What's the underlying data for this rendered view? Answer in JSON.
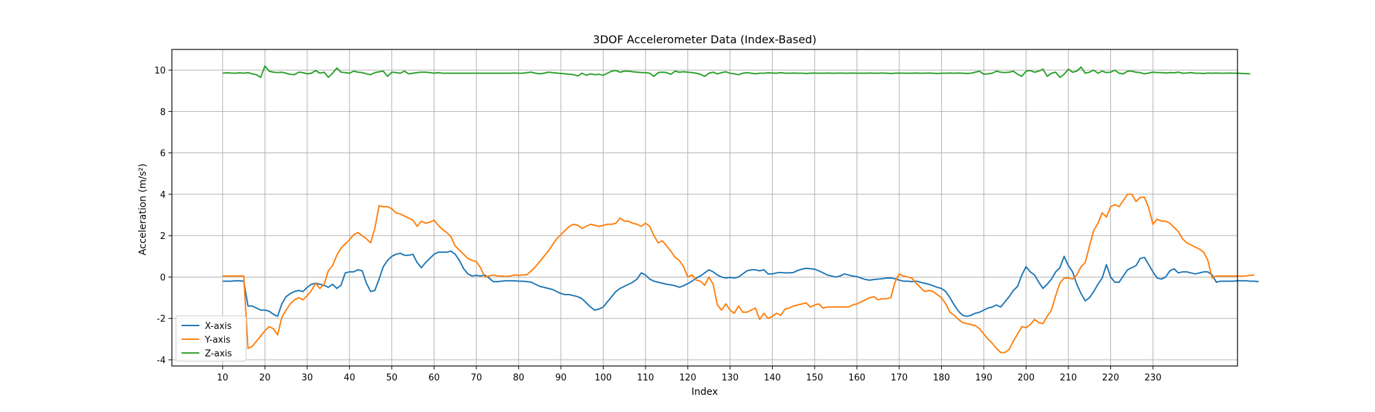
{
  "chart_data": {
    "type": "line",
    "title": "3DOF Accelerometer Data (Index-Based)",
    "xlabel": "Index",
    "ylabel": "Acceleration (m/s²)",
    "xlim": [
      -2,
      250
    ],
    "ylim": [
      -4.3,
      11.0
    ],
    "xticks": [
      10,
      20,
      30,
      40,
      50,
      60,
      70,
      80,
      90,
      100,
      110,
      120,
      130,
      140,
      150,
      160,
      170,
      180,
      190,
      200,
      210,
      220,
      230
    ],
    "yticks": [
      -4,
      -2,
      0,
      2,
      4,
      6,
      8,
      10
    ],
    "grid": true,
    "legend_position": "lower-left",
    "x_start": 10,
    "x_step": 1,
    "series": [
      {
        "name": "X-axis",
        "color": "#1f77b4",
        "values": [
          -0.2,
          -0.2,
          -0.2,
          -0.18,
          -0.18,
          -0.2,
          -1.4,
          -1.4,
          -1.5,
          -1.6,
          -1.6,
          -1.65,
          -1.8,
          -1.9,
          -1.3,
          -0.95,
          -0.8,
          -0.7,
          -0.65,
          -0.7,
          -0.5,
          -0.35,
          -0.3,
          -0.35,
          -0.4,
          -0.5,
          -0.35,
          -0.55,
          -0.4,
          0.2,
          0.25,
          0.25,
          0.35,
          0.3,
          -0.3,
          -0.7,
          -0.65,
          -0.1,
          0.5,
          0.8,
          1.0,
          1.1,
          1.15,
          1.05,
          1.05,
          1.1,
          0.7,
          0.45,
          0.7,
          0.9,
          1.1,
          1.2,
          1.2,
          1.2,
          1.25,
          1.1,
          0.8,
          0.4,
          0.15,
          0.05,
          0.08,
          0.05,
          0.1,
          -0.05,
          -0.22,
          -0.22,
          -0.2,
          -0.18,
          -0.18,
          -0.18,
          -0.2,
          -0.2,
          -0.22,
          -0.25,
          -0.35,
          -0.45,
          -0.5,
          -0.55,
          -0.6,
          -0.7,
          -0.8,
          -0.85,
          -0.85,
          -0.9,
          -0.95,
          -1.05,
          -1.25,
          -1.45,
          -1.6,
          -1.55,
          -1.45,
          -1.2,
          -0.95,
          -0.7,
          -0.55,
          -0.45,
          -0.35,
          -0.25,
          -0.1,
          0.2,
          0.1,
          -0.1,
          -0.2,
          -0.25,
          -0.3,
          -0.35,
          -0.38,
          -0.42,
          -0.5,
          -0.42,
          -0.32,
          -0.2,
          -0.05,
          0.05,
          0.2,
          0.35,
          0.25,
          0.1,
          0.0,
          -0.05,
          -0.02,
          -0.05,
          0.0,
          0.15,
          0.3,
          0.35,
          0.35,
          0.3,
          0.35,
          0.15,
          0.15,
          0.2,
          0.22,
          0.2,
          0.2,
          0.22,
          0.32,
          0.38,
          0.42,
          0.4,
          0.38,
          0.3,
          0.2,
          0.1,
          0.05,
          0.0,
          0.05,
          0.15,
          0.1,
          0.05,
          0.02,
          -0.05,
          -0.12,
          -0.15,
          -0.12,
          -0.1,
          -0.08,
          -0.05,
          -0.05,
          -0.08,
          -0.15,
          -0.2,
          -0.2,
          -0.22,
          -0.2,
          -0.25,
          -0.3,
          -0.35,
          -0.42,
          -0.5,
          -0.55,
          -0.7,
          -1.0,
          -1.35,
          -1.65,
          -1.85,
          -1.9,
          -1.85,
          -1.75,
          -1.7,
          -1.6,
          -1.5,
          -1.45,
          -1.35,
          -1.45,
          -1.2,
          -0.95,
          -0.65,
          -0.45,
          0.1,
          0.5,
          0.25,
          0.1,
          -0.25,
          -0.55,
          -0.35,
          -0.1,
          0.25,
          0.45,
          1.0,
          0.55,
          0.25,
          -0.35,
          -0.8,
          -1.15,
          -1.0,
          -0.7,
          -0.35,
          -0.05,
          0.6,
          0.0,
          -0.25,
          -0.25,
          0.05,
          0.35,
          0.45,
          0.55,
          0.9,
          0.95,
          0.6,
          0.25,
          -0.05,
          -0.1,
          0.0,
          0.3,
          0.4,
          0.2,
          0.25,
          0.25,
          0.2,
          0.15,
          0.2,
          0.25,
          0.25,
          0.1,
          -0.25,
          -0.2,
          -0.2,
          -0.2,
          -0.2,
          -0.18,
          -0.18,
          -0.18,
          -0.2,
          -0.2,
          -0.22
        ]
      },
      {
        "name": "Y-axis",
        "color": "#ff7f0e",
        "values": [
          0.05,
          0.05,
          0.05,
          0.05,
          0.05,
          0.05,
          -3.45,
          -3.35,
          -3.1,
          -2.85,
          -2.6,
          -2.4,
          -2.5,
          -2.8,
          -1.95,
          -1.6,
          -1.3,
          -1.1,
          -1.0,
          -1.1,
          -0.9,
          -0.65,
          -0.3,
          -0.55,
          -0.35,
          0.3,
          0.55,
          1.05,
          1.4,
          1.6,
          1.8,
          2.05,
          2.15,
          2.0,
          1.85,
          1.65,
          2.35,
          3.45,
          3.4,
          3.4,
          3.3,
          3.1,
          3.05,
          2.95,
          2.85,
          2.75,
          2.45,
          2.7,
          2.6,
          2.65,
          2.75,
          2.5,
          2.3,
          2.15,
          1.95,
          1.5,
          1.3,
          1.1,
          0.9,
          0.8,
          0.75,
          0.45,
          0.0,
          0.05,
          0.1,
          0.05,
          0.05,
          0.02,
          0.05,
          0.1,
          0.08,
          0.1,
          0.12,
          0.3,
          0.5,
          0.75,
          1.0,
          1.25,
          1.55,
          1.85,
          2.05,
          2.25,
          2.45,
          2.55,
          2.5,
          2.35,
          2.45,
          2.55,
          2.5,
          2.45,
          2.5,
          2.55,
          2.55,
          2.6,
          2.85,
          2.7,
          2.7,
          2.6,
          2.55,
          2.45,
          2.6,
          2.45,
          2.0,
          1.65,
          1.75,
          1.5,
          1.25,
          0.95,
          0.8,
          0.5,
          0.0,
          0.1,
          -0.15,
          -0.2,
          -0.4,
          0.0,
          -0.35,
          -1.35,
          -1.6,
          -1.3,
          -1.6,
          -1.75,
          -1.4,
          -1.7,
          -1.7,
          -1.6,
          -1.5,
          -2.05,
          -1.75,
          -2.0,
          -1.9,
          -1.75,
          -1.85,
          -1.55,
          -1.5,
          -1.4,
          -1.35,
          -1.3,
          -1.25,
          -1.45,
          -1.35,
          -1.3,
          -1.5,
          -1.45,
          -1.45,
          -1.45,
          -1.45,
          -1.45,
          -1.45,
          -1.35,
          -1.3,
          -1.2,
          -1.1,
          -1.0,
          -0.95,
          -1.1,
          -1.05,
          -1.05,
          -1.0,
          -0.25,
          0.15,
          0.05,
          0.0,
          -0.05,
          -0.3,
          -0.5,
          -0.7,
          -0.65,
          -0.7,
          -0.85,
          -1.0,
          -1.3,
          -1.7,
          -1.85,
          -2.05,
          -2.2,
          -2.25,
          -2.3,
          -2.35,
          -2.5,
          -2.75,
          -3.0,
          -3.2,
          -3.45,
          -3.65,
          -3.65,
          -3.5,
          -3.1,
          -2.75,
          -2.4,
          -2.45,
          -2.3,
          -2.05,
          -2.2,
          -2.25,
          -1.9,
          -1.6,
          -0.9,
          -0.3,
          -0.05,
          -0.05,
          -0.1,
          0.1,
          0.5,
          0.7,
          1.5,
          2.25,
          2.6,
          3.1,
          2.9,
          3.4,
          3.5,
          3.4,
          3.7,
          4.0,
          4.0,
          3.65,
          3.85,
          3.85,
          3.35,
          2.55,
          2.8,
          2.7,
          2.7,
          2.6,
          2.4,
          2.2,
          1.85,
          1.65,
          1.55,
          1.45,
          1.35,
          1.2,
          0.8,
          -0.05,
          0.05,
          0.05,
          0.05,
          0.05,
          0.05,
          0.05,
          0.03,
          0.05,
          0.08,
          0.1
        ]
      },
      {
        "name": "Z-axis",
        "color": "#2ca02c",
        "values": [
          9.85,
          9.87,
          9.86,
          9.85,
          9.87,
          9.85,
          9.88,
          9.82,
          9.78,
          9.65,
          10.2,
          9.95,
          9.9,
          9.88,
          9.9,
          9.85,
          9.8,
          9.78,
          9.9,
          9.88,
          9.82,
          9.85,
          9.98,
          9.85,
          9.9,
          9.65,
          9.85,
          10.1,
          9.9,
          9.88,
          9.85,
          9.95,
          9.9,
          9.88,
          9.82,
          9.78,
          9.88,
          9.92,
          9.95,
          9.7,
          9.9,
          9.88,
          9.85,
          9.95,
          9.82,
          9.85,
          9.88,
          9.9,
          9.9,
          9.88,
          9.85,
          9.88,
          9.85,
          9.85,
          9.85,
          9.85,
          9.85,
          9.85,
          9.85,
          9.85,
          9.85,
          9.85,
          9.85,
          9.85,
          9.85,
          9.85,
          9.85,
          9.85,
          9.85,
          9.86,
          9.85,
          9.85,
          9.88,
          9.9,
          9.85,
          9.82,
          9.85,
          9.9,
          9.88,
          9.86,
          9.84,
          9.82,
          9.8,
          9.78,
          9.72,
          9.85,
          9.75,
          9.82,
          9.78,
          9.8,
          9.75,
          9.85,
          9.95,
          9.98,
          9.9,
          9.95,
          9.95,
          9.92,
          9.9,
          9.88,
          9.88,
          9.85,
          9.7,
          9.88,
          9.9,
          9.88,
          9.8,
          9.95,
          9.9,
          9.92,
          9.9,
          9.88,
          9.85,
          9.8,
          9.7,
          9.85,
          9.9,
          9.82,
          9.88,
          9.92,
          9.85,
          9.82,
          9.78,
          9.85,
          9.88,
          9.85,
          9.82,
          9.85,
          9.85,
          9.87,
          9.86,
          9.85,
          9.88,
          9.85,
          9.85,
          9.86,
          9.85,
          9.85,
          9.84,
          9.85,
          9.86,
          9.85,
          9.85,
          9.86,
          9.85,
          9.85,
          9.86,
          9.85,
          9.85,
          9.86,
          9.85,
          9.85,
          9.85,
          9.86,
          9.85,
          9.85,
          9.86,
          9.85,
          9.84,
          9.85,
          9.86,
          9.85,
          9.85,
          9.85,
          9.86,
          9.85,
          9.85,
          9.86,
          9.85,
          9.84,
          9.85,
          9.85,
          9.86,
          9.85,
          9.86,
          9.85,
          9.84,
          9.85,
          9.9,
          9.95,
          9.8,
          9.82,
          9.85,
          9.95,
          9.9,
          9.88,
          9.9,
          9.95,
          9.8,
          9.7,
          9.95,
          9.98,
          9.9,
          9.95,
          10.05,
          9.7,
          9.85,
          9.9,
          9.65,
          9.8,
          10.05,
          9.9,
          9.95,
          10.15,
          9.85,
          9.9,
          10.0,
          9.85,
          9.95,
          9.88,
          9.9,
          10.0,
          9.85,
          9.82,
          9.95,
          9.95,
          9.9,
          9.88,
          9.82,
          9.86,
          9.9,
          9.88,
          9.88,
          9.86,
          9.88,
          9.87,
          9.9,
          9.85,
          9.86,
          9.88,
          9.85,
          9.85,
          9.84,
          9.86,
          9.85,
          9.86,
          9.85,
          9.85,
          9.86,
          9.85,
          9.85,
          9.84,
          9.83,
          9.82
        ]
      }
    ]
  }
}
